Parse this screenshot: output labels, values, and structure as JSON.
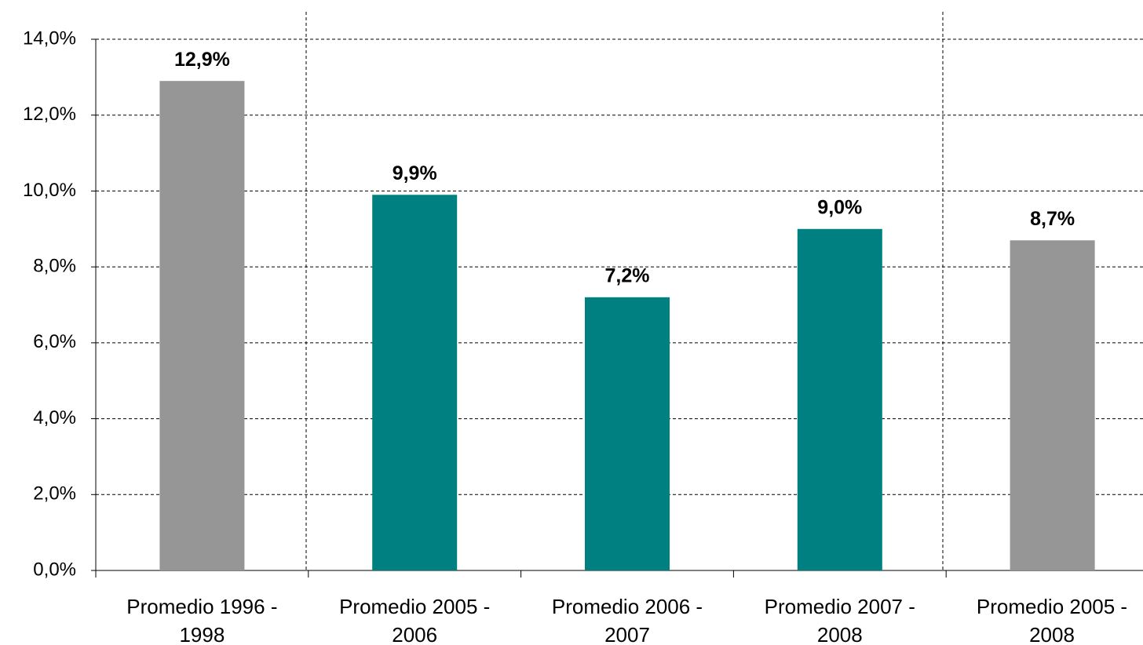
{
  "chart_data": {
    "type": "bar",
    "categories": [
      "Promedio 1996 - 1998",
      "Promedio 2005 - 2006",
      "Promedio 2006 - 2007",
      "Promedio 2007 - 2008",
      "Promedio 2005 - 2008"
    ],
    "values": [
      12.9,
      9.9,
      7.2,
      9.0,
      8.7
    ],
    "value_labels": [
      "12,9%",
      "9,9%",
      "7,2%",
      "9,0%",
      "8,7%"
    ],
    "colors": [
      "#969696",
      "#008080",
      "#008080",
      "#008080",
      "#969696"
    ],
    "ylim": [
      0,
      14
    ],
    "yticks": [
      {
        "value": 0,
        "label": "0,0%"
      },
      {
        "value": 2,
        "label": "2,0%"
      },
      {
        "value": 4,
        "label": "4,0%"
      },
      {
        "value": 6,
        "label": "6,0%"
      },
      {
        "value": 8,
        "label": "8,0%"
      },
      {
        "value": 10,
        "label": "10,0%"
      },
      {
        "value": 12,
        "label": "12,0%"
      },
      {
        "value": 14,
        "label": "14,0%"
      }
    ],
    "grid": true
  }
}
